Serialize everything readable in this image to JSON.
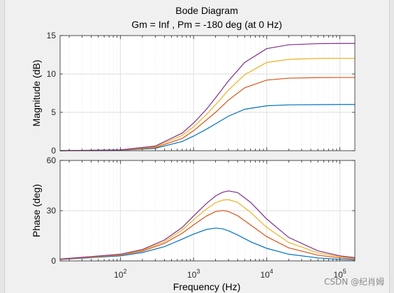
{
  "chart_data": {
    "type": "line",
    "title": "Bode Diagram",
    "subtitle": "Gm = Inf ,  Pm = -180 deg (at 0 Hz)",
    "xlabel": "Frequency  (Hz)",
    "xscale": "log",
    "xlim": [
      15,
      160000
    ],
    "x_tick_labels": [
      {
        "base": "10",
        "exp": "2",
        "value": 100
      },
      {
        "base": "10",
        "exp": "3",
        "value": 1000
      },
      {
        "base": "10",
        "exp": "4",
        "value": 10000
      },
      {
        "base": "10",
        "exp": "5",
        "value": 100000
      }
    ],
    "grid": true,
    "legend": "none",
    "colors": [
      "#0072bd",
      "#d95319",
      "#edb120",
      "#7e2f8e"
    ],
    "panels": [
      {
        "ylabel": "Magnitude (dB)",
        "ylim": [
          0,
          15
        ],
        "y_ticks": [
          0,
          5,
          10,
          15
        ],
        "series": [
          {
            "x": [
              15,
              100,
              300,
              700,
              1000,
              1500,
              2000,
              3000,
              5000,
              10000,
              20000,
              50000,
              100000,
              160000
            ],
            "y": [
              0.0,
              0.05,
              0.3,
              1.2,
              1.9,
              2.8,
              3.5,
              4.5,
              5.4,
              5.85,
              5.97,
              6.0,
              6.02,
              6.02
            ]
          },
          {
            "x": [
              15,
              100,
              300,
              700,
              1000,
              1500,
              2000,
              3000,
              5000,
              10000,
              20000,
              50000,
              100000,
              160000
            ],
            "y": [
              0.0,
              0.07,
              0.4,
              1.6,
              2.6,
              4.0,
              5.0,
              6.6,
              8.2,
              9.2,
              9.45,
              9.52,
              9.54,
              9.54
            ]
          },
          {
            "x": [
              15,
              100,
              300,
              700,
              1000,
              1500,
              2000,
              3000,
              5000,
              10000,
              20000,
              50000,
              100000,
              160000
            ],
            "y": [
              0.0,
              0.09,
              0.5,
              2.0,
              3.1,
              4.7,
              6.0,
              7.9,
              9.9,
              11.5,
              11.9,
              12.02,
              12.04,
              12.04
            ]
          },
          {
            "x": [
              15,
              100,
              300,
              700,
              1000,
              1500,
              2000,
              3000,
              5000,
              10000,
              20000,
              50000,
              100000,
              160000
            ],
            "y": [
              0.0,
              0.1,
              0.6,
              2.3,
              3.6,
              5.4,
              6.9,
              9.1,
              11.5,
              13.3,
              13.8,
              13.95,
              13.98,
              13.98
            ]
          }
        ]
      },
      {
        "ylabel": "Phase (deg)",
        "ylim": [
          0,
          60
        ],
        "y_ticks": [
          0,
          30,
          60
        ],
        "series": [
          {
            "x": [
              15,
              100,
              200,
              400,
              700,
              1000,
              1500,
              2000,
              2500,
              3000,
              4000,
              6000,
              10000,
              20000,
              50000,
              100000,
              160000
            ],
            "y": [
              0.8,
              3.0,
              5.0,
              8.5,
              13.0,
              16.0,
              18.8,
              19.6,
              19.2,
              18.0,
              15.5,
              11.5,
              7.5,
              4.0,
              1.8,
              0.9,
              0.6
            ]
          },
          {
            "x": [
              15,
              100,
              200,
              400,
              700,
              1000,
              1500,
              2000,
              2500,
              3000,
              4000,
              6000,
              10000,
              20000,
              50000,
              100000,
              160000
            ],
            "y": [
              0.9,
              3.4,
              5.8,
              10.5,
              16.5,
              21.5,
              26.8,
              29.5,
              30.1,
              29.5,
              27.0,
              21.5,
              14.5,
              7.8,
              3.4,
              1.8,
              1.2
            ]
          },
          {
            "x": [
              15,
              100,
              200,
              400,
              700,
              1000,
              1500,
              2000,
              2500,
              3000,
              4000,
              6000,
              10000,
              20000,
              50000,
              100000,
              160000
            ],
            "y": [
              1.0,
              3.7,
              6.3,
              11.5,
              18.5,
              24.5,
              31.0,
              34.8,
              36.3,
              36.6,
              35.0,
              29.0,
              20.0,
              11.0,
              4.8,
              2.5,
              1.6
            ]
          },
          {
            "x": [
              15,
              100,
              200,
              400,
              700,
              1000,
              1500,
              2000,
              2500,
              3000,
              4000,
              6000,
              10000,
              20000,
              50000,
              100000,
              160000
            ],
            "y": [
              1.1,
              4.0,
              6.8,
              12.5,
              20.0,
              26.8,
              34.3,
              38.8,
              41.0,
              41.8,
              40.8,
              35.0,
              25.0,
              14.0,
              6.0,
              3.0,
              2.0
            ]
          }
        ]
      }
    ]
  },
  "watermark": "CSDN @纪肖姆"
}
